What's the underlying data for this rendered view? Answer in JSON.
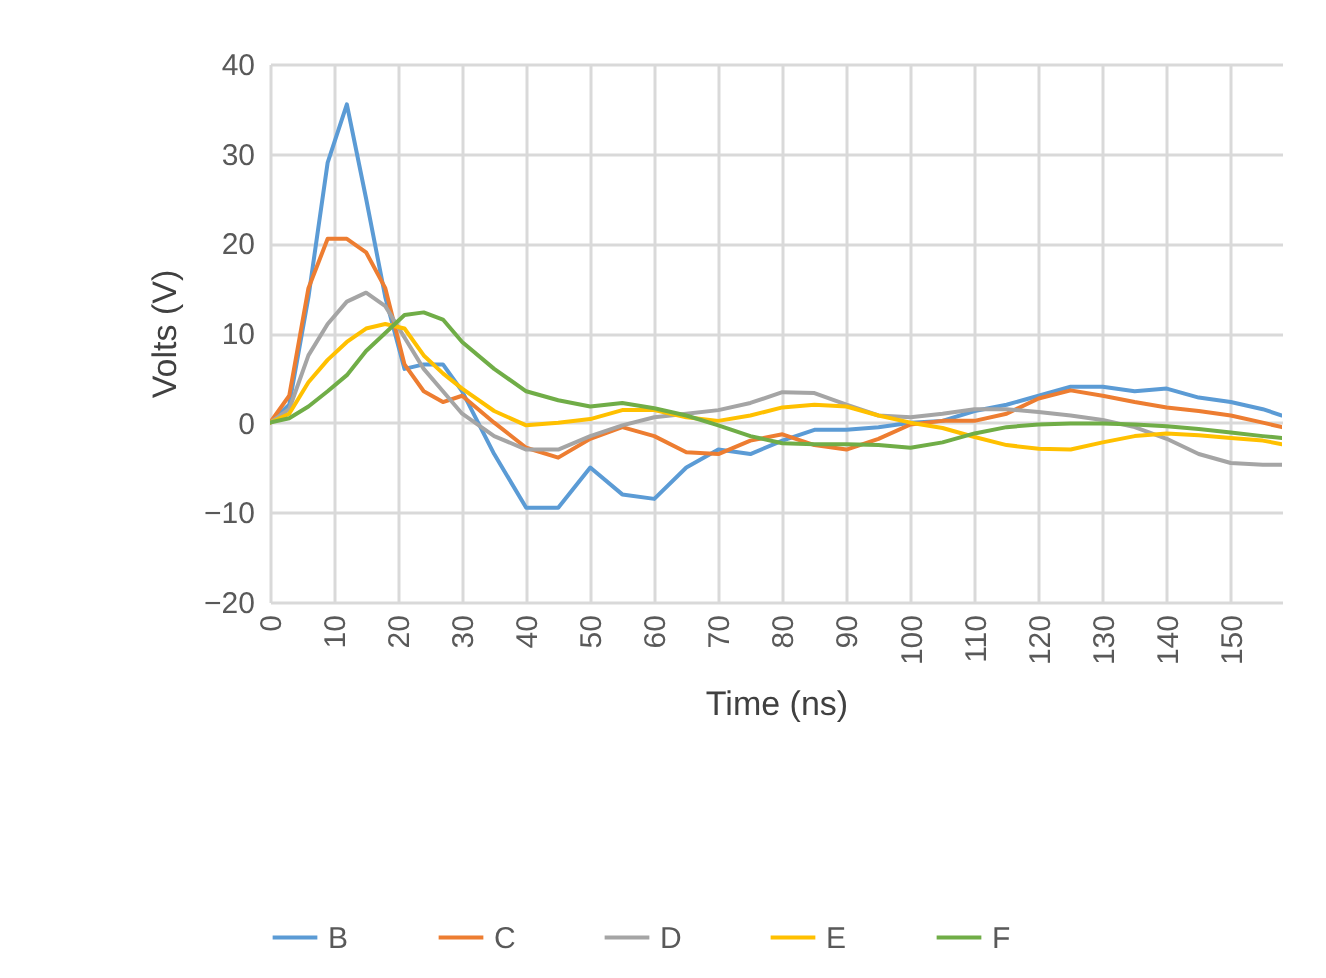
{
  "chart_data": {
    "type": "line",
    "xlabel": "Time (ns)",
    "ylabel": "Volts (V)",
    "x": [
      0,
      3,
      6,
      9,
      12,
      15,
      18,
      21,
      24,
      27,
      30,
      35,
      40,
      45,
      50,
      55,
      60,
      65,
      70,
      75,
      80,
      85,
      90,
      95,
      100,
      105,
      110,
      115,
      120,
      125,
      130,
      135,
      140,
      145,
      150,
      155,
      158
    ],
    "xlim": [
      0,
      158
    ],
    "xticks": [
      0,
      10,
      20,
      30,
      40,
      50,
      60,
      70,
      80,
      90,
      100,
      110,
      120,
      130,
      140,
      150
    ],
    "ylim": [
      -20,
      40
    ],
    "yticks": [
      -20,
      -10,
      0,
      10,
      20,
      30,
      40
    ],
    "grid": true,
    "legend": "bottom",
    "marker": "none",
    "line_style": "solid",
    "series": [
      {
        "name": "B",
        "color": "#5b9bd5",
        "values": [
          0,
          2,
          14,
          29,
          35.5,
          25,
          14,
          6,
          6.5,
          6.5,
          3.5,
          -3.5,
          -9.5,
          -9.5,
          -5,
          -8,
          -8.5,
          -5,
          -3,
          -3.5,
          -2,
          -0.8,
          -0.8,
          -0.5,
          0,
          0.2,
          1.3,
          2,
          3,
          4,
          4,
          3.5,
          3.8,
          2.8,
          2.3,
          1.5,
          0.8
        ]
      },
      {
        "name": "C",
        "color": "#ed7d31",
        "values": [
          0,
          3,
          15,
          20.5,
          20.5,
          19,
          15,
          6.5,
          3.5,
          2.3,
          3,
          0,
          -2.8,
          -3.9,
          -1.8,
          -0.5,
          -1.5,
          -3.3,
          -3.5,
          -2,
          -1.3,
          -2.5,
          -3,
          -1.8,
          -0.2,
          0.2,
          0.2,
          1,
          2.7,
          3.6,
          3,
          2.3,
          1.7,
          1.3,
          0.8,
          0,
          -0.5
        ]
      },
      {
        "name": "D",
        "color": "#a5a5a5",
        "values": [
          0,
          1.5,
          7.5,
          11,
          13.5,
          14.5,
          13,
          9.5,
          6,
          3.5,
          1,
          -1.5,
          -3,
          -3,
          -1.5,
          -0.3,
          0.6,
          1,
          1.4,
          2.2,
          3.4,
          3.3,
          2,
          0.8,
          0.6,
          1,
          1.5,
          1.5,
          1.2,
          0.8,
          0.3,
          -0.5,
          -1.8,
          -3.5,
          -4.5,
          -4.7,
          -4.7
        ]
      },
      {
        "name": "E",
        "color": "#ffc000",
        "values": [
          0,
          1,
          4.5,
          7,
          9,
          10.5,
          11,
          10.5,
          7.5,
          5.5,
          3.8,
          1.3,
          -0.3,
          0,
          0.4,
          1.4,
          1.4,
          0.6,
          0.2,
          0.8,
          1.7,
          2,
          1.8,
          0.8,
          0,
          -0.6,
          -1.6,
          -2.5,
          -2.9,
          -3,
          -2.2,
          -1.5,
          -1.2,
          -1.4,
          -1.7,
          -2,
          -2.4
        ]
      },
      {
        "name": "F",
        "color": "#70ad47",
        "values": [
          0,
          0.5,
          1.8,
          3.5,
          5.3,
          8,
          10,
          12,
          12.3,
          11.5,
          9,
          6,
          3.5,
          2.5,
          1.8,
          2.2,
          1.6,
          0.8,
          -0.3,
          -1.5,
          -2.3,
          -2.4,
          -2.4,
          -2.5,
          -2.8,
          -2.2,
          -1.2,
          -0.5,
          -0.2,
          -0.1,
          -0.1,
          -0.2,
          -0.4,
          -0.7,
          -1.1,
          -1.5,
          -1.7
        ]
      }
    ]
  }
}
